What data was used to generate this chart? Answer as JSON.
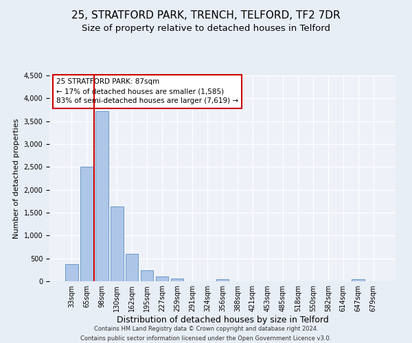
{
  "title": "25, STRATFORD PARK, TRENCH, TELFORD, TF2 7DR",
  "subtitle": "Size of property relative to detached houses in Telford",
  "xlabel": "Distribution of detached houses by size in Telford",
  "ylabel": "Number of detached properties",
  "categories": [
    "33sqm",
    "65sqm",
    "98sqm",
    "130sqm",
    "162sqm",
    "195sqm",
    "227sqm",
    "259sqm",
    "291sqm",
    "324sqm",
    "356sqm",
    "388sqm",
    "421sqm",
    "453sqm",
    "485sqm",
    "518sqm",
    "550sqm",
    "582sqm",
    "614sqm",
    "647sqm",
    "679sqm"
  ],
  "values": [
    380,
    2500,
    3720,
    1640,
    600,
    240,
    105,
    60,
    0,
    0,
    50,
    0,
    0,
    0,
    0,
    0,
    0,
    0,
    0,
    50,
    0
  ],
  "bar_color": "#aec6e8",
  "bar_edge_color": "#5a8fc0",
  "vline_color": "#cc0000",
  "vline_x_index": 1,
  "annotation_title": "25 STRATFORD PARK: 87sqm",
  "annotation_line1": "← 17% of detached houses are smaller (1,585)",
  "annotation_line2": "83% of semi-detached houses are larger (7,619) →",
  "annotation_box_color": "#ffffff",
  "annotation_border_color": "#cc0000",
  "ylim": [
    0,
    4500
  ],
  "yticks": [
    0,
    500,
    1000,
    1500,
    2000,
    2500,
    3000,
    3500,
    4000,
    4500
  ],
  "footer_line1": "Contains HM Land Registry data © Crown copyright and database right 2024.",
  "footer_line2": "Contains public sector information licensed under the Open Government Licence v3.0.",
  "bg_color": "#e8eef5",
  "plot_bg_color": "#eef2f8",
  "title_fontsize": 11,
  "subtitle_fontsize": 9.5,
  "xlabel_fontsize": 9,
  "ylabel_fontsize": 8,
  "tick_fontsize": 7,
  "footer_fontsize": 6,
  "annotation_fontsize": 7.5
}
